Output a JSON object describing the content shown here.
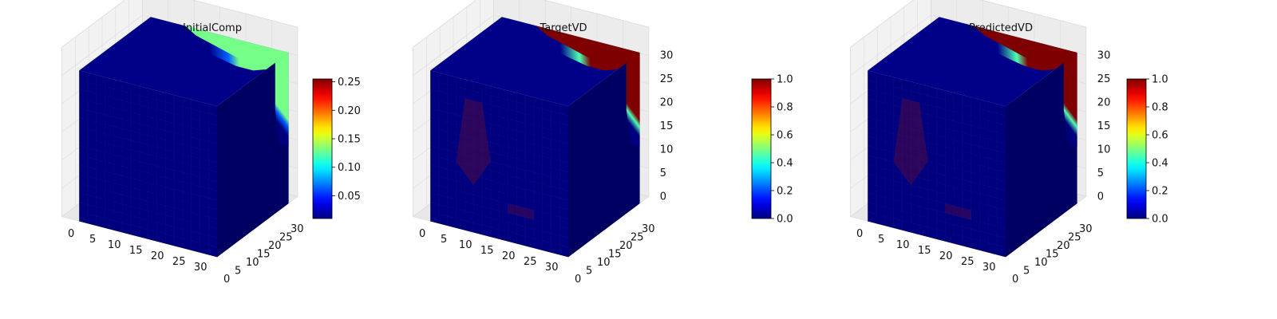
{
  "figure": {
    "colormap": "jet",
    "colormap_stops": [
      "#00007f",
      "#0000ff",
      "#007fff",
      "#00ffff",
      "#7fff7f",
      "#ffff00",
      "#ff7f00",
      "#ff0000",
      "#7f0000"
    ],
    "axis_pane_color": "#f2f2f2",
    "grid_color": "#dcdcdc"
  },
  "chart_data": [
    {
      "type": "voxel-3d",
      "title": "InitialComp",
      "x_ticks": [
        "0",
        "5",
        "10",
        "15",
        "20",
        "25",
        "30"
      ],
      "y_ticks": [
        "0",
        "5",
        "10",
        "15",
        "20",
        "25",
        "30"
      ],
      "z_ticks": [],
      "xlim": [
        0,
        32
      ],
      "ylim": [
        0,
        32
      ],
      "zlim": [
        0,
        32
      ],
      "colorbar": {
        "min": 0.01,
        "max": 0.255,
        "ticks": [
          "0.05",
          "0.10",
          "0.15",
          "0.20",
          "0.25"
        ],
        "tick_values": [
          0.05,
          0.1,
          0.15,
          0.2,
          0.25
        ]
      },
      "high_region_value": 0.13,
      "low_value": 0.01,
      "show_side_band": true,
      "show_interior_ghost": false
    },
    {
      "type": "voxel-3d",
      "title": "TargetVD",
      "x_ticks": [
        "0",
        "5",
        "10",
        "15",
        "20",
        "25",
        "30"
      ],
      "y_ticks": [
        "0",
        "5",
        "10",
        "15",
        "20",
        "25",
        "30"
      ],
      "z_ticks": [
        "0",
        "5",
        "10",
        "15",
        "20",
        "25",
        "30"
      ],
      "xlim": [
        0,
        32
      ],
      "ylim": [
        0,
        32
      ],
      "zlim": [
        0,
        32
      ],
      "colorbar": {
        "min": 0.0,
        "max": 1.0,
        "ticks": [
          "0.0",
          "0.2",
          "0.4",
          "0.6",
          "0.8",
          "1.0"
        ],
        "tick_values": [
          0.0,
          0.2,
          0.4,
          0.6,
          0.8,
          1.0
        ]
      },
      "high_region_value": 1.0,
      "low_value": 0.0,
      "show_side_band": true,
      "show_interior_ghost": true
    },
    {
      "type": "voxel-3d",
      "title": "PredictedVD",
      "x_ticks": [
        "0",
        "5",
        "10",
        "15",
        "20",
        "25",
        "30"
      ],
      "y_ticks": [
        "0",
        "5",
        "10",
        "15",
        "20",
        "25",
        "30"
      ],
      "z_ticks": [
        "0",
        "5",
        "10",
        "15",
        "20",
        "25",
        "30"
      ],
      "xlim": [
        0,
        32
      ],
      "ylim": [
        0,
        32
      ],
      "zlim": [
        0,
        32
      ],
      "colorbar": {
        "min": 0.0,
        "max": 1.0,
        "ticks": [
          "0.0",
          "0.2",
          "0.4",
          "0.6",
          "0.8",
          "1.0"
        ],
        "tick_values": [
          0.0,
          0.2,
          0.4,
          0.6,
          0.8,
          1.0
        ]
      },
      "high_region_value": 1.0,
      "low_value": 0.0,
      "show_side_band": true,
      "show_interior_ghost": true
    }
  ]
}
